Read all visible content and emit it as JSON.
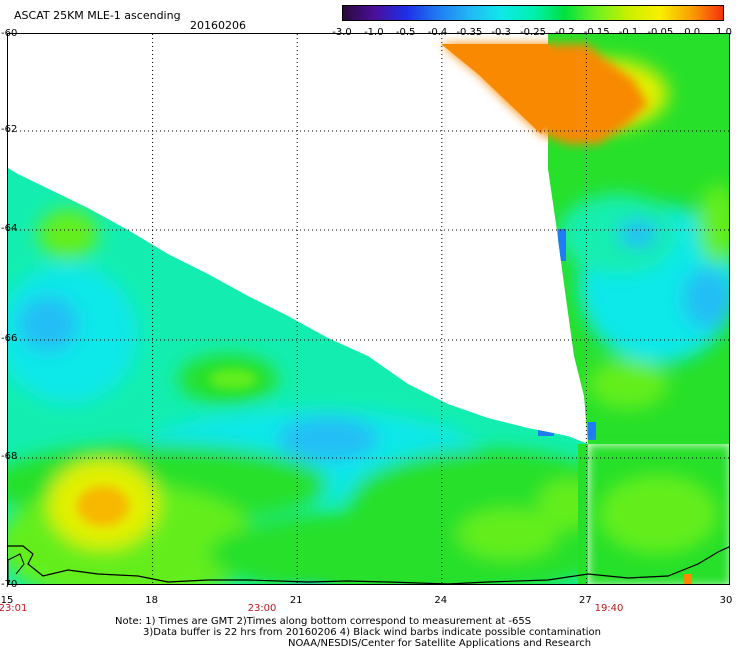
{
  "header": {
    "title": "ASCAT 25KM MLE-1 ascending",
    "date": "20160206"
  },
  "colorbar": {
    "labels": [
      "-3.0",
      "-1.0",
      "-0.5",
      "-0.4",
      "-0.35",
      "-0.3",
      "-0.25",
      "-0.2",
      "-0.15",
      "-0.1",
      "-0.05",
      "0.0",
      "1.0"
    ],
    "colors": [
      "#2a0a3a",
      "#4b0f9a",
      "#1d2fe8",
      "#1f7cf2",
      "#22b8f5",
      "#10e8e8",
      "#00f0b0",
      "#00e040",
      "#6ef020",
      "#c8f000",
      "#f8f000",
      "#f8a000",
      "#f83010"
    ]
  },
  "map": {
    "colors": {
      "green": "#27e02a",
      "light_green": "#63ee1f",
      "cyan_green": "#13eeb0",
      "cyan": "#10e8e8",
      "light_blue": "#22bef5",
      "blue": "#1f7cf2",
      "yellow": "#e2f000",
      "orange": "#f88900",
      "coast": "#000000"
    },
    "lat_labels": [
      "-60",
      "-62",
      "-64",
      "-66",
      "-68",
      "-70"
    ],
    "lon_labels": [
      "15",
      "18",
      "21",
      "24",
      "27",
      "30"
    ],
    "time_labels": [
      "23:01",
      "23:00",
      "19:40"
    ]
  },
  "notes": {
    "line1": "Note: 1) Times are GMT 2)Times along bottom correspond to measurement at -65S",
    "line2": "3)Data buffer is 22 hrs from 20160206 4) Black wind barbs indicate possible contamination",
    "line3": "NOAA/NESDIS/Center for Satellite Applications and Research"
  }
}
